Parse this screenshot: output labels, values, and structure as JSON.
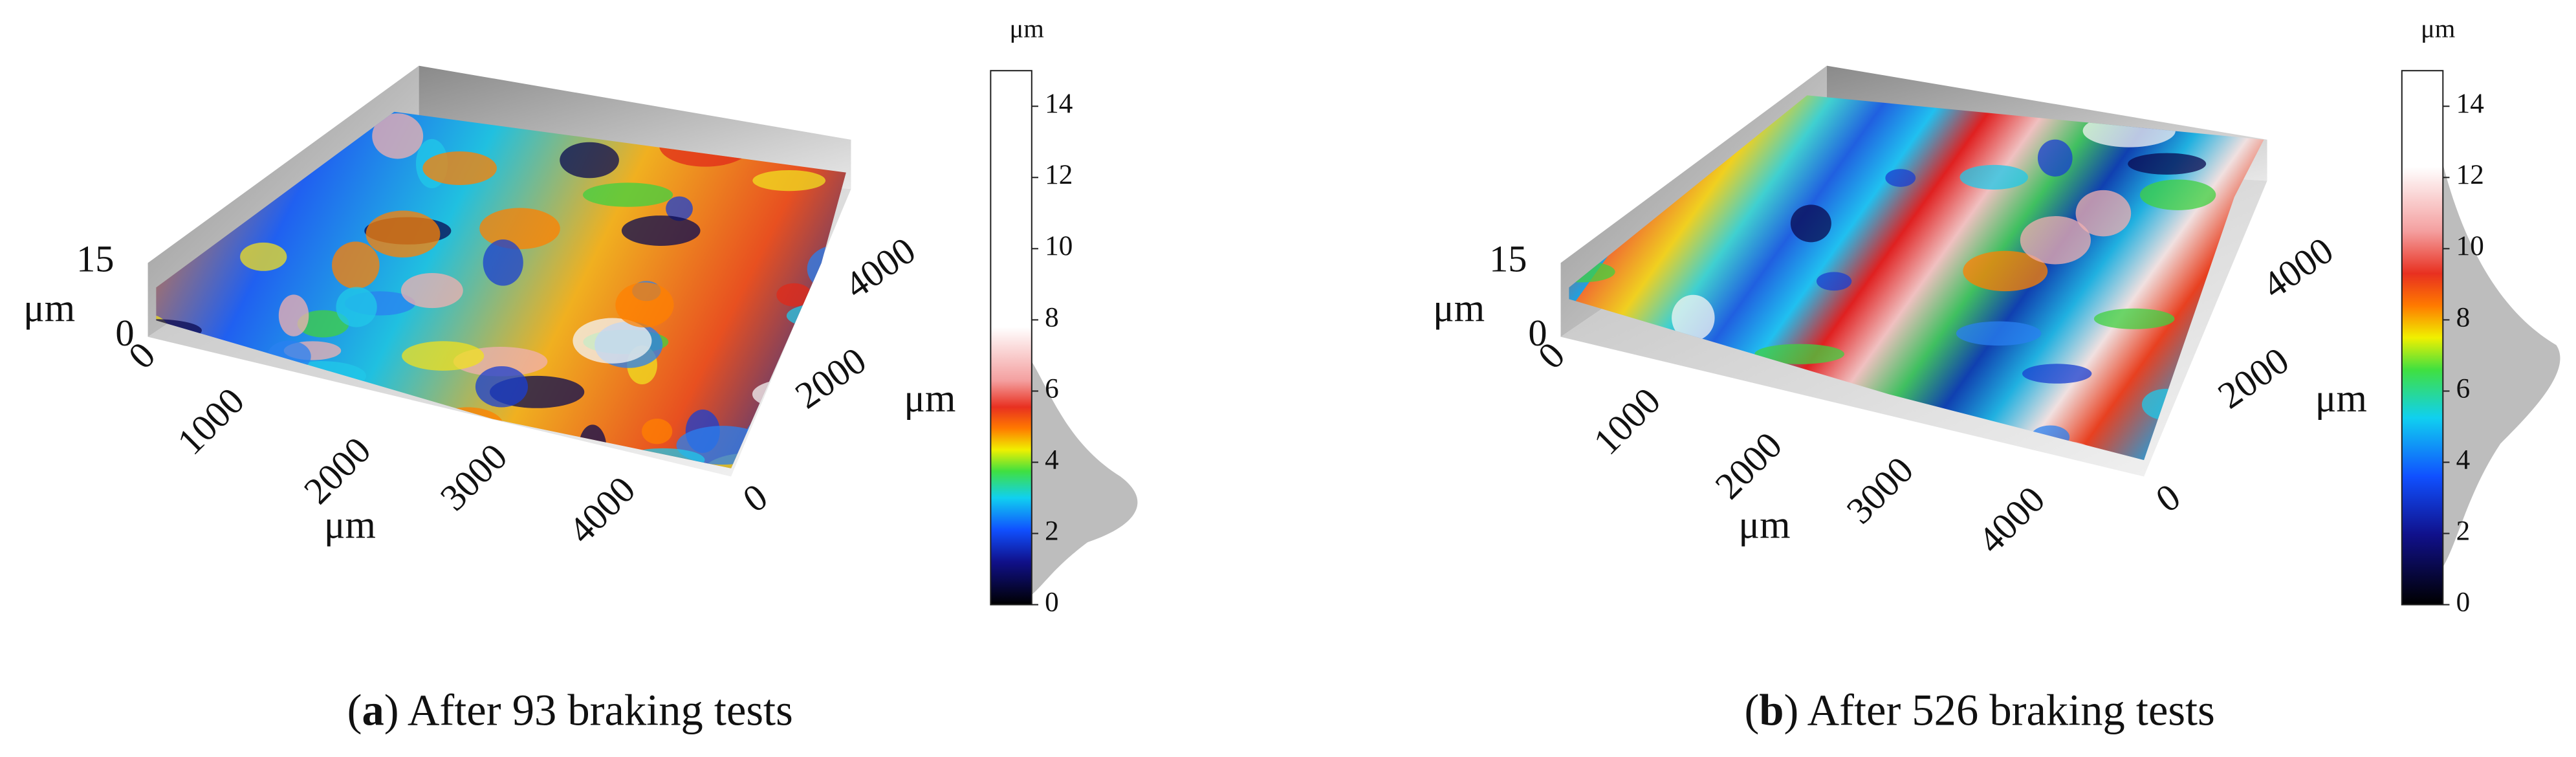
{
  "panels": [
    {
      "caption": [
        "(",
        "a",
        ") After 93 braking tests"
      ],
      "z_axis": {
        "unit": "μm",
        "ticks": [
          0,
          15
        ]
      },
      "x_axis": {
        "unit": "μm",
        "ticks": [
          0,
          1000,
          2000,
          3000,
          4000
        ]
      },
      "y_axis": {
        "unit": "μm",
        "ticks": [
          0,
          2000,
          4000
        ]
      },
      "colorbar": {
        "unit": "μm",
        "lim": [
          0,
          15
        ],
        "ticks": [
          0,
          2,
          4,
          6,
          8,
          10,
          12,
          14
        ]
      }
    },
    {
      "caption": [
        "(",
        "b",
        ") After 526 braking tests"
      ],
      "z_axis": {
        "unit": "μm",
        "ticks": [
          0,
          15
        ]
      },
      "x_axis": {
        "unit": "μm",
        "ticks": [
          0,
          1000,
          2000,
          3000,
          4000
        ]
      },
      "y_axis": {
        "unit": "μm",
        "ticks": [
          0,
          2000,
          4000
        ]
      },
      "colorbar": {
        "unit": "μm",
        "lim": [
          0,
          15
        ],
        "ticks": [
          0,
          2,
          4,
          6,
          8,
          10,
          12,
          14
        ]
      }
    }
  ]
}
